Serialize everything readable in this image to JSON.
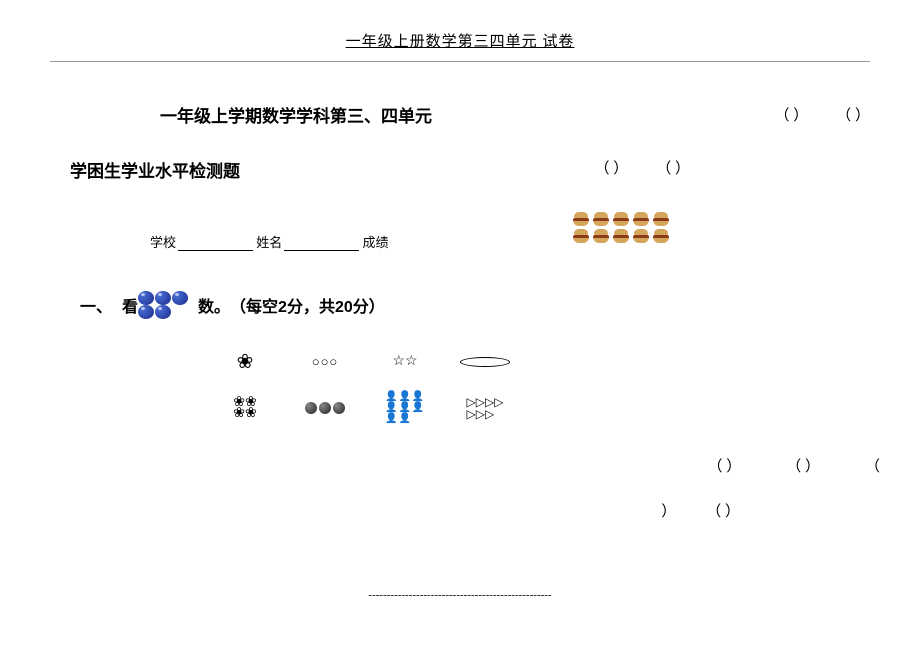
{
  "header": {
    "text": "一年级上册数学第三四单元  试卷"
  },
  "main_title": "一年级上学期数学学科第三、四单元",
  "subtitle": "学困生学业水平检测题",
  "top_right_parens": [
    "（    ）",
    "（    ）"
  ],
  "middle_parens": [
    "（    ）",
    "（    ）"
  ],
  "info": {
    "school_label": "学校",
    "name_label": "姓名",
    "score_label": "成绩"
  },
  "burgers": {
    "row1_count": 5,
    "row2_count": 5
  },
  "section1": {
    "number": "一、",
    "prefix": "看",
    "char": "数。",
    "scoring": "（每空2分，共20分）"
  },
  "icons": {
    "row1": {
      "circles": "○○○",
      "stars": "☆☆"
    },
    "row2": {
      "flags_row1": "▷▷▷▷",
      "flags_row2": "▷▷▷"
    }
  },
  "bottom_parens_1": [
    "（    ）",
    "（    ）",
    "（"
  ],
  "bottom_parens_2": [
    "）",
    "（    ）"
  ],
  "footer": "--------------------------------------------------"
}
